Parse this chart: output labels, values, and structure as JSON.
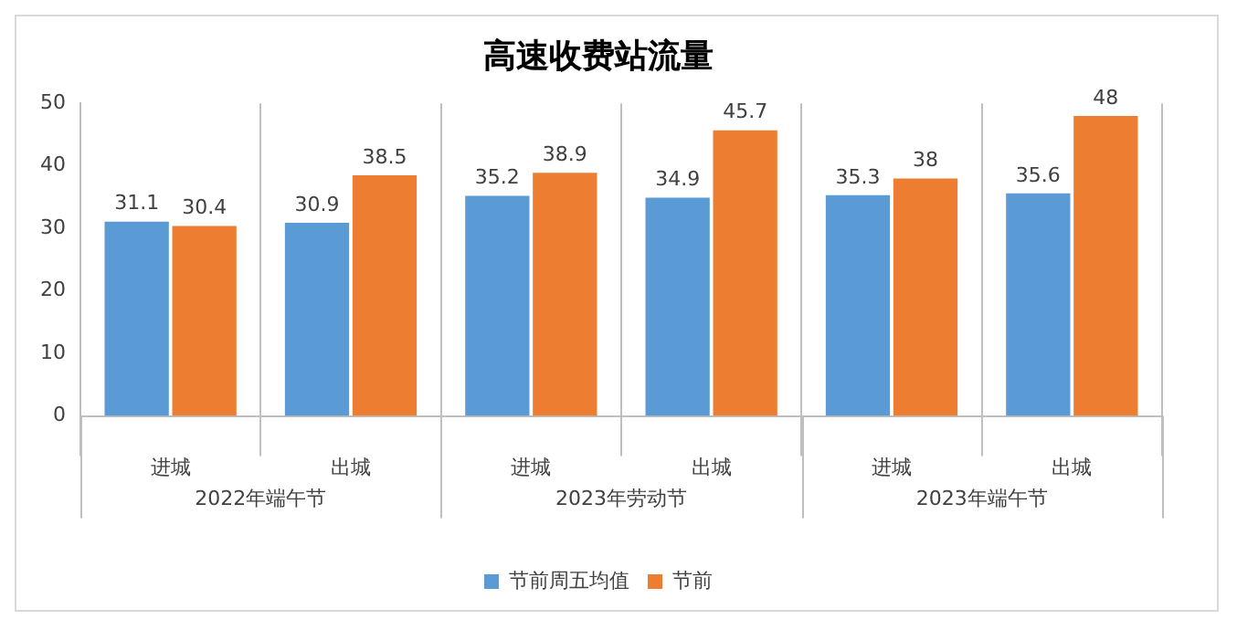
{
  "chart_data": {
    "type": "bar",
    "title": "高速收费站流量",
    "categories": [
      "进城",
      "出城",
      "进城",
      "出城",
      "进城",
      "出城"
    ],
    "series": [
      {
        "name": "节前周五均值",
        "color": "#5b9bd5",
        "values": [
          31.1,
          30.9,
          35.2,
          34.9,
          35.3,
          35.6
        ]
      },
      {
        "name": "节前",
        "color": "#ed7d31",
        "values": [
          30.4,
          38.5,
          38.9,
          45.7,
          38,
          48
        ]
      }
    ],
    "annotations": [
      "2022年端午节",
      "2023年劳动节",
      "2023年端午节"
    ],
    "ylim": [
      0,
      50
    ],
    "yticks": [
      0,
      10,
      20,
      30,
      40,
      50
    ],
    "grid": "x",
    "legend": "bottom",
    "data_labels": true
  }
}
